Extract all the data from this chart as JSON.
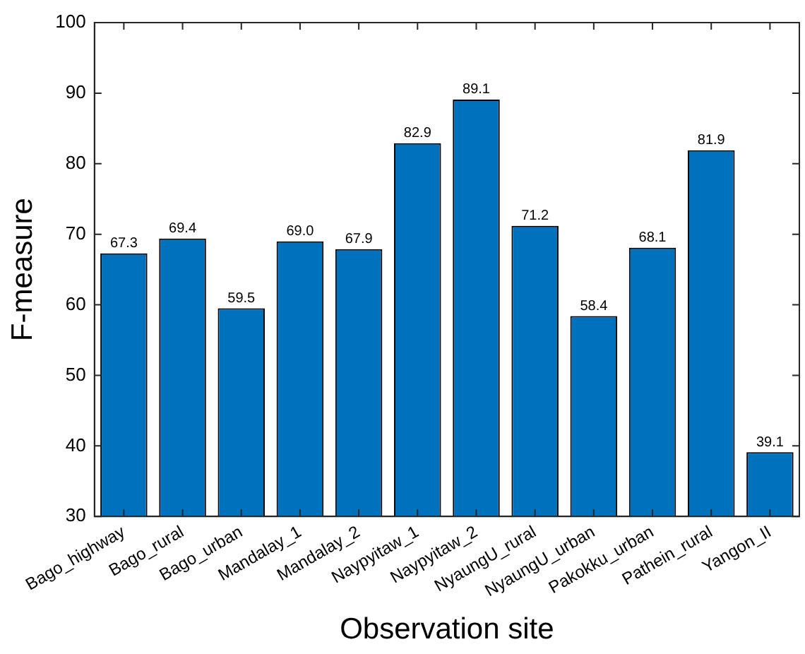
{
  "chart_data": {
    "type": "bar",
    "xlabel": "Observation site",
    "ylabel": "F-measure",
    "categories": [
      "Bago_highway",
      "Bago_rural",
      "Bago_urban",
      "Mandalay_1",
      "Mandalay_2",
      "Naypyitaw_1",
      "Naypyitaw_2",
      "NyaungU_rural",
      "NyaungU_urban",
      "Pakokku_urban",
      "Pathein_rural",
      "Yangon_II"
    ],
    "values": [
      67.3,
      69.4,
      59.5,
      69.0,
      67.9,
      82.9,
      89.1,
      71.2,
      58.4,
      68.1,
      81.9,
      39.1
    ],
    "value_labels": [
      "67.3",
      "69.4",
      "59.5",
      "69.0",
      "67.9",
      "82.9",
      "89.1",
      "71.2",
      "58.4",
      "68.1",
      "81.9",
      "39.1"
    ],
    "color": "#0072bd",
    "ylim": [
      30,
      100
    ],
    "yticks": [
      30,
      40,
      50,
      60,
      70,
      80,
      90,
      100
    ],
    "grid": false,
    "legend": false
  }
}
